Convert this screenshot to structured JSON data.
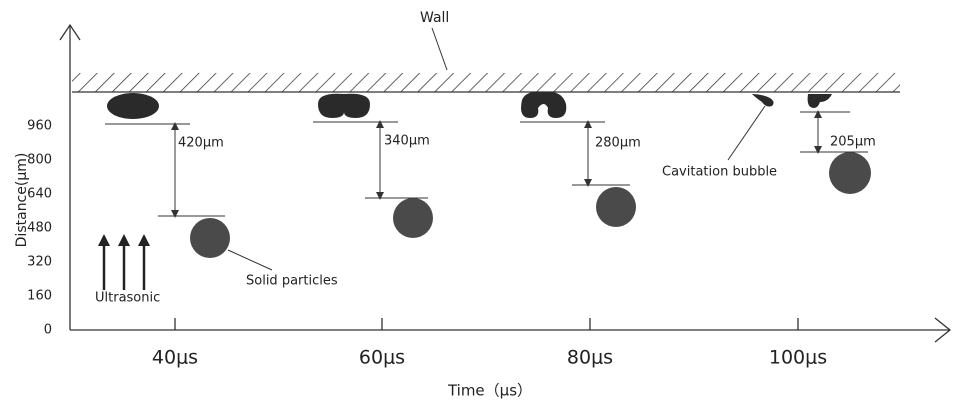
{
  "axes": {
    "y_title": "Distance(μm)",
    "y_ticks": [
      "0",
      "160",
      "320",
      "480",
      "640",
      "800",
      "960"
    ],
    "x_title": "Time（μs）",
    "x_ticks": [
      "40μs",
      "60μs",
      "80μs",
      "100μs"
    ]
  },
  "labels": {
    "wall": "Wall",
    "gaps": [
      "420μm",
      "340μm",
      "280μm",
      "205μm"
    ],
    "particles": "Solid particles",
    "bubble": "Cavitation bubble",
    "ultrasonic": "Ultrasonic"
  }
}
